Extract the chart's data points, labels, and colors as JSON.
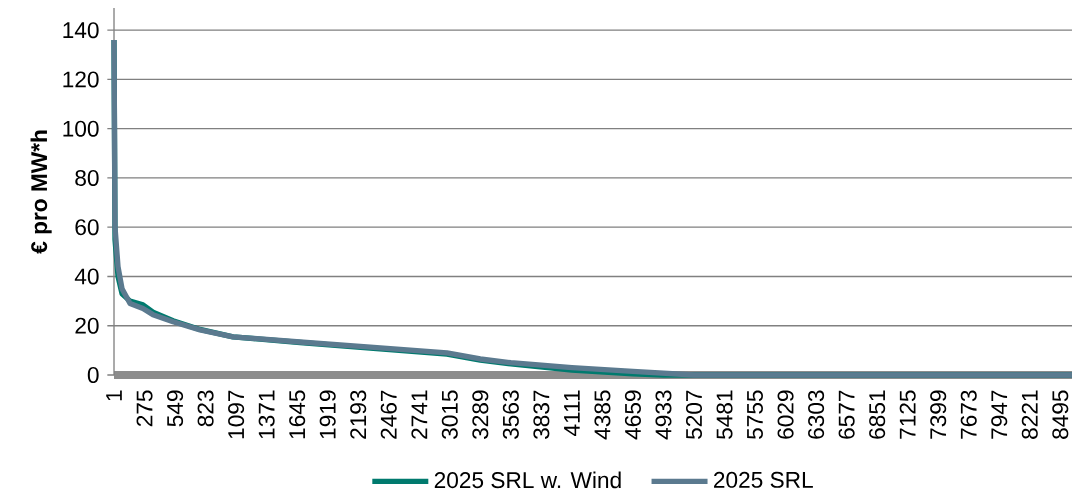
{
  "chart_data": {
    "type": "line",
    "ylabel": "€ pro MW*h",
    "xlim": [
      1,
      8600
    ],
    "ylim": [
      0,
      149
    ],
    "xticks": [
      1,
      275,
      549,
      823,
      1097,
      1371,
      1645,
      1919,
      2193,
      2467,
      2741,
      3015,
      3289,
      3563,
      3837,
      4111,
      4385,
      4659,
      4933,
      5207,
      5481,
      5755,
      6029,
      6303,
      6577,
      6851,
      7125,
      7399,
      7673,
      7947,
      8221,
      8495
    ],
    "yticks": [
      0,
      20,
      40,
      60,
      80,
      100,
      120,
      140
    ],
    "grid": "y",
    "legend": "bottom",
    "marker": "none",
    "line_style": "solid",
    "series": [
      {
        "name": "2025 SRL w. Wind",
        "color": "#007a6e",
        "x": [
          1,
          10,
          37,
          73,
          145,
          261,
          351,
          531,
          773,
          1069,
          1671,
          2272,
          2990,
          3289,
          3563,
          4111,
          4659,
          4933,
          8600
        ],
        "values": [
          136,
          55,
          40,
          33,
          30,
          28.5,
          25.5,
          22,
          18.5,
          15.5,
          13.2,
          11,
          8.5,
          6,
          4.5,
          2,
          0.5,
          0,
          0
        ]
      },
      {
        "name": "2025 SRL",
        "color": "#5b7a8f",
        "x": [
          1,
          10,
          37,
          73,
          145,
          261,
          351,
          531,
          773,
          1069,
          1671,
          2272,
          2990,
          3289,
          3563,
          4111,
          4659,
          5207,
          8600
        ],
        "values": [
          136,
          60,
          44,
          35,
          29,
          27,
          24.5,
          21.6,
          18.3,
          15.5,
          13.4,
          11.4,
          9,
          6.5,
          5,
          3,
          1.5,
          0,
          0
        ]
      }
    ]
  }
}
